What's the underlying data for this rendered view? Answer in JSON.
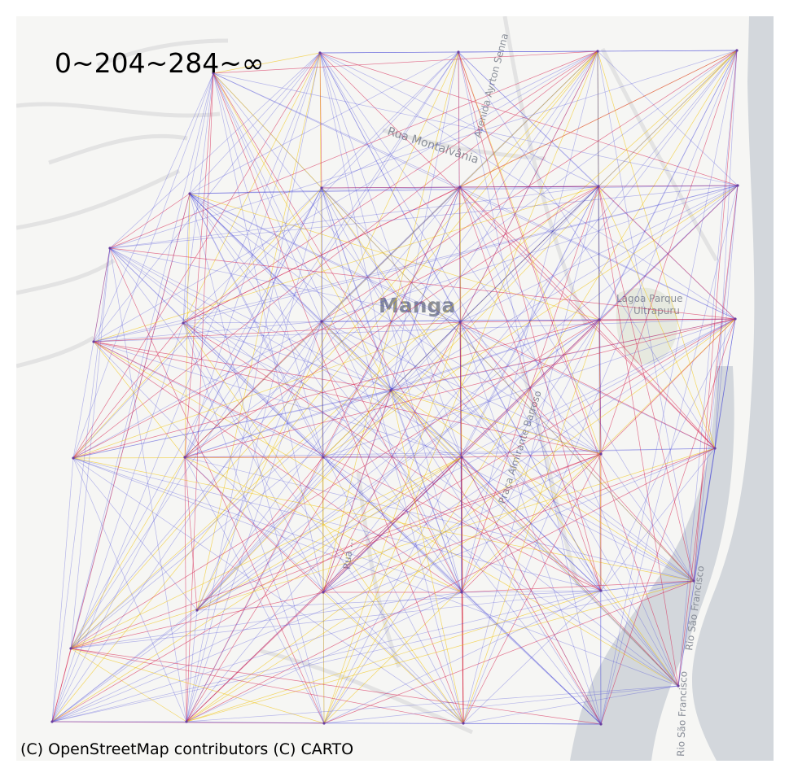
{
  "title": "0~204~284~∞",
  "attribution": "(C) OpenStreetMap contributors (C) CARTO",
  "basemap_labels": {
    "neighborhood": "Manga",
    "street_1": "Rua Montalvânia",
    "street_2": "Avenida Ayrton Senna",
    "street_3": "Praça Almirante Barroso",
    "street_4": "Rua ...",
    "park": "Lagoa Parque",
    "park_2": "Ultrapuru",
    "river": "Rio São Francisco",
    "river_2": "Rio São Francisco"
  },
  "legend_classes": [
    {
      "range": "0~204",
      "color": "#3b3bd6"
    },
    {
      "range": "204~284",
      "color": "#d6204e"
    },
    {
      "range": "284~∞",
      "color": "#f2c200"
    }
  ],
  "colors": {
    "water": "#d3d7dc",
    "land": "#f6f6f4",
    "roads": "#e4e4e4",
    "park": "#e8ecd8"
  }
}
